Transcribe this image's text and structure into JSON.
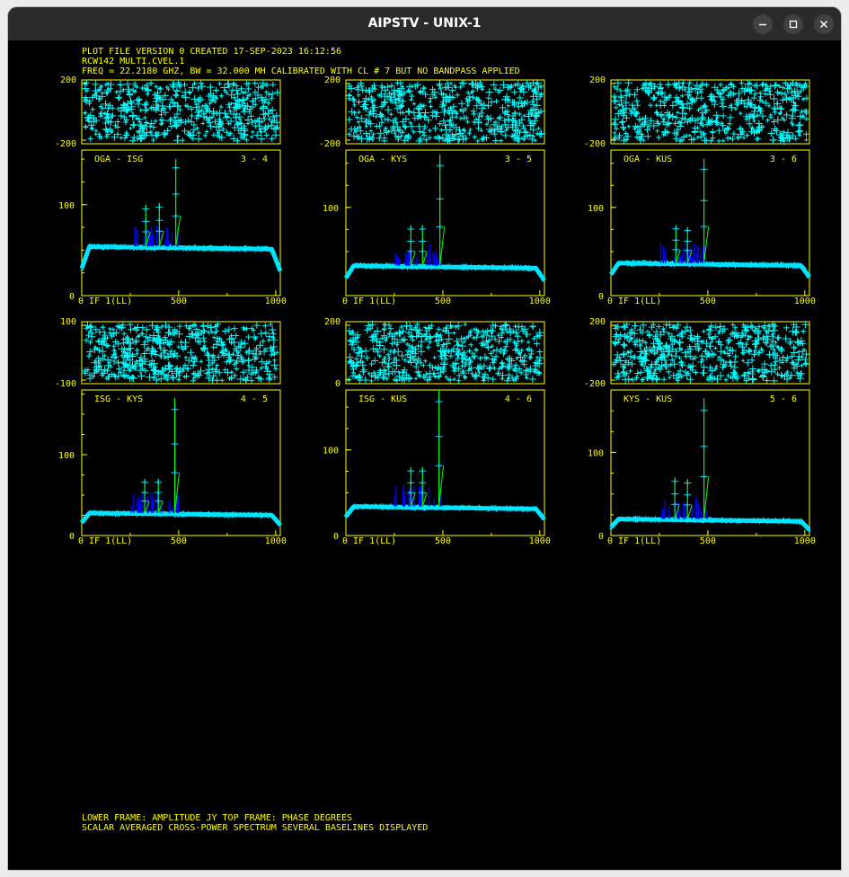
{
  "window": {
    "title": "AIPSTV - UNIX-1"
  },
  "header_lines": [
    "PLOT FILE VERSION 0  CREATED 17-SEP-2023 16:12:56",
    "RCW142   MULTI.CVEL.1",
    "FREQ = 22.2180 GHZ, BW = 32.000 MH    CALIBRATED WITH CL # 7 BUT NO BANDPASS APPLIED"
  ],
  "footer_lines": [
    "LOWER FRAME: AMPLITUDE JY   TOP FRAME: PHASE DEGREES",
    "SCALAR AVERAGED CROSS-POWER SPECTRUM    SEVERAL BASELINES DISPLAYED"
  ],
  "colors": {
    "text": "#ffff00",
    "frame": "#ffff00",
    "phase": "#00ffff",
    "amp_base": "#00e5ff",
    "amp_peak": "#00ff00",
    "amp_low": "#0000ff",
    "background": "#000000"
  },
  "chart_data": [
    {
      "type": "line",
      "baseline": "OGA - ISG",
      "antennas": "3 - 4",
      "x_ticks": [
        "0 IF 1(LL)",
        "500",
        "1000"
      ],
      "phase_ticks": [
        "200",
        "-200"
      ],
      "amp_ticks": [
        "100",
        "0"
      ],
      "xlim": [
        0,
        1024
      ],
      "phase_ylim": [
        -200,
        200
      ],
      "amp_ylim": [
        0,
        160
      ],
      "amp_plateau": 54,
      "amp_edge": 30,
      "peaks": [
        {
          "x": 330,
          "y": 100
        },
        {
          "x": 400,
          "y": 102
        },
        {
          "x": 485,
          "y": 150
        }
      ]
    },
    {
      "type": "line",
      "baseline": "OGA - KYS",
      "antennas": "3 - 5",
      "x_ticks": [
        "0 IF 1(LL)",
        "500",
        "1000"
      ],
      "phase_ticks": [
        "200",
        "-200"
      ],
      "amp_ticks": [
        "100"
      ],
      "xlim": [
        0,
        1024
      ],
      "phase_ylim": [
        -200,
        200
      ],
      "amp_ylim": [
        0,
        165
      ],
      "amp_plateau": 34,
      "amp_edge": 20,
      "peaks": [
        {
          "x": 335,
          "y": 80
        },
        {
          "x": 395,
          "y": 80
        },
        {
          "x": 485,
          "y": 160
        }
      ]
    },
    {
      "type": "line",
      "baseline": "OGA - KUS",
      "antennas": "3 - 6",
      "x_ticks": [
        "0 IF 1(LL)",
        "500",
        "1000"
      ],
      "phase_ticks": [
        "200",
        "-200"
      ],
      "amp_ticks": [
        "100",
        "0"
      ],
      "xlim": [
        0,
        1024
      ],
      "phase_ylim": [
        -200,
        200
      ],
      "amp_ylim": [
        0,
        165
      ],
      "amp_plateau": 37,
      "amp_edge": 24,
      "peaks": [
        {
          "x": 335,
          "y": 80
        },
        {
          "x": 395,
          "y": 78
        },
        {
          "x": 480,
          "y": 155
        }
      ]
    },
    {
      "type": "line",
      "baseline": "ISG - KYS",
      "antennas": "4 - 5",
      "x_ticks": [
        "0 IF 1(LL)",
        "500",
        "1000"
      ],
      "phase_ticks": [
        "100",
        "-100"
      ],
      "amp_ticks": [
        "100",
        "0"
      ],
      "xlim": [
        0,
        1024
      ],
      "phase_ylim": [
        -150,
        150
      ],
      "amp_ylim": [
        0,
        180
      ],
      "amp_plateau": 28,
      "amp_edge": 16,
      "peaks": [
        {
          "x": 325,
          "y": 70
        },
        {
          "x": 395,
          "y": 70
        },
        {
          "x": 480,
          "y": 170
        }
      ]
    },
    {
      "type": "line",
      "baseline": "ISG - KUS",
      "antennas": "4 - 6",
      "x_ticks": [
        "0 IF 1(LL)",
        "500",
        "1000"
      ],
      "phase_ticks": [
        "200",
        "0"
      ],
      "amp_ticks": [
        "100",
        "0"
      ],
      "xlim": [
        0,
        1024
      ],
      "phase_ylim": [
        0,
        300
      ],
      "amp_ylim": [
        0,
        170
      ],
      "amp_plateau": 34,
      "amp_edge": 22,
      "peaks": [
        {
          "x": 335,
          "y": 80
        },
        {
          "x": 395,
          "y": 80
        },
        {
          "x": 480,
          "y": 170
        }
      ]
    },
    {
      "type": "line",
      "baseline": "KYS - KUS",
      "antennas": "5 - 6",
      "x_ticks": [
        "0 IF 1(LL)",
        "500",
        "1000"
      ],
      "phase_ticks": [
        "200",
        "-200"
      ],
      "amp_ticks": [
        "100",
        "0"
      ],
      "xlim": [
        0,
        1024
      ],
      "phase_ylim": [
        -200,
        200
      ],
      "amp_ylim": [
        0,
        175
      ],
      "amp_plateau": 20,
      "amp_edge": 10,
      "peaks": [
        {
          "x": 330,
          "y": 70
        },
        {
          "x": 395,
          "y": 68
        },
        {
          "x": 480,
          "y": 165
        }
      ]
    }
  ]
}
